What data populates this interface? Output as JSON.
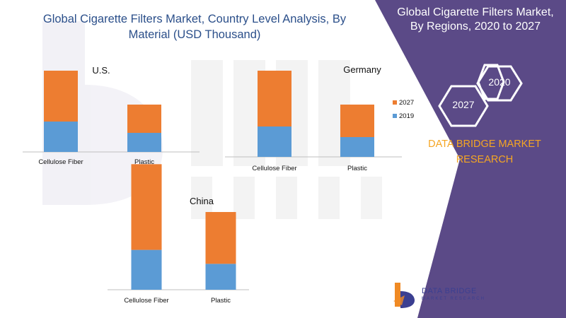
{
  "header": {
    "left_title_line1": "Global Cigarette Filters Market, Country Level Analysis, By",
    "left_title_line2": "Material (USD Thousand)",
    "right_title_line1": "Global  Cigarette Filters Market,",
    "right_title_line2": "By Regions, 2020 to 2027"
  },
  "hexagons": {
    "front": "2027",
    "back": "2020"
  },
  "brand": {
    "line1": "DATA BRIDGE MARKET",
    "line2": "RESEARCH"
  },
  "logo": {
    "name": "DATA BRIDGE",
    "tagline": "MARKET RESEARCH"
  },
  "colors": {
    "panel": "#5b4a87",
    "s2019": "#5b9bd5",
    "s2027": "#ed7d31",
    "brand_text": "#f5a623"
  },
  "chart_data": [
    {
      "type": "bar",
      "stacked": true,
      "title": "U.S.",
      "categories": [
        "Cellulose Fiber",
        "Plastic"
      ],
      "series": [
        {
          "name": "2019",
          "values": [
            43,
            27
          ]
        },
        {
          "name": "2027",
          "values": [
            72,
            40
          ]
        }
      ]
    },
    {
      "type": "bar",
      "stacked": true,
      "title": "Germany",
      "categories": [
        "Cellulose Fiber",
        "Plastic"
      ],
      "legend": [
        "2027",
        "2019"
      ],
      "series": [
        {
          "name": "2019",
          "values": [
            43,
            28
          ]
        },
        {
          "name": "2027",
          "values": [
            79,
            46
          ]
        }
      ]
    },
    {
      "type": "bar",
      "stacked": true,
      "title": "China",
      "categories": [
        "Cellulose Fiber",
        "Plastic"
      ],
      "series": [
        {
          "name": "2019",
          "values": [
            40,
            26
          ]
        },
        {
          "name": "2027",
          "values": [
            86,
            52
          ]
        }
      ]
    }
  ]
}
